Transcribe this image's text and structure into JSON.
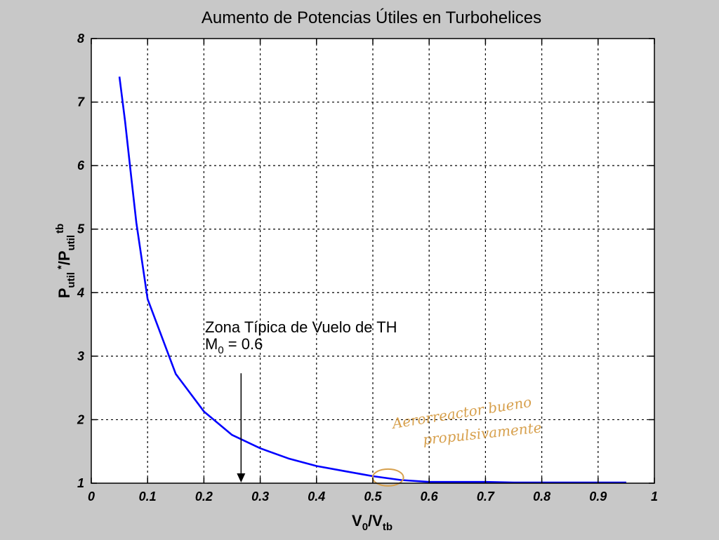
{
  "chart_data": {
    "type": "line",
    "title": "Aumento de Potencias Útiles en Turbohelices",
    "xlabel": {
      "main": "V",
      "sub1": "0",
      "slash": "/V",
      "sub2": "tb"
    },
    "ylabel": {
      "main1": "P",
      "sub1": "util",
      "sup1": "*",
      "slash": "/P",
      "sub2": "util",
      "sup2": "tb"
    },
    "xlim": [
      0,
      1
    ],
    "ylim": [
      1,
      8
    ],
    "xticks": [
      "0",
      "0.1",
      "0.2",
      "0.3",
      "0.4",
      "0.5",
      "0.6",
      "0.7",
      "0.8",
      "0.9",
      "1"
    ],
    "yticks": [
      "1",
      "2",
      "3",
      "4",
      "5",
      "6",
      "7",
      "8"
    ],
    "grid": true,
    "series": [
      {
        "color": "#0000ff",
        "x": [
          0.05,
          0.06,
          0.07,
          0.08,
          0.09,
          0.1,
          0.15,
          0.2,
          0.25,
          0.3,
          0.35,
          0.4,
          0.45,
          0.5,
          0.55,
          0.6,
          0.65,
          0.7,
          0.75,
          0.8,
          0.85,
          0.9,
          0.95
        ],
        "y": [
          7.4,
          6.7,
          5.9,
          5.1,
          4.5,
          3.9,
          2.72,
          2.13,
          1.76,
          1.55,
          1.39,
          1.27,
          1.19,
          1.11,
          1.05,
          1.02,
          1.02,
          1.02,
          1.01,
          1.01,
          1.01,
          1.01,
          1.01
        ]
      }
    ],
    "annotation": {
      "line1": "Zona Típica de Vuelo de TH",
      "line2_main": "M",
      "line2_sub": "0",
      "line2_rest": " = 0.6",
      "arrow_x": 0.266,
      "arrow_from_y": 2.73,
      "arrow_to_y": 1.0
    },
    "handwritten": {
      "line1": "Aerorreactor bueno",
      "line2": "propulsivamente",
      "color": "#d7a04d",
      "circle_x": 0.527,
      "circle_y": 1.09
    }
  }
}
